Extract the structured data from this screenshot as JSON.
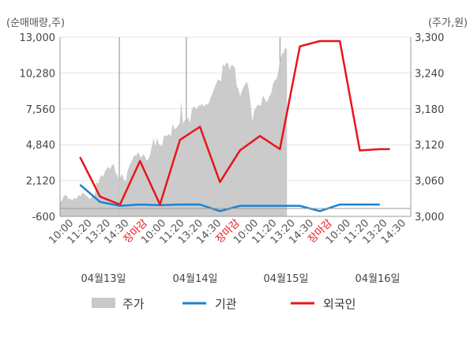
{
  "chart_data": {
    "type": "line",
    "left_axis_label": "(순매매량,주)",
    "right_axis_label": "(주가,원)",
    "left_ticks": [
      "13,000",
      "10,280",
      "7,560",
      "4,840",
      "2,120",
      "-600"
    ],
    "left_range": [
      -600,
      13000
    ],
    "right_ticks": [
      "3,300",
      "3,240",
      "3,180",
      "3,120",
      "3,060",
      "3,000"
    ],
    "right_range": [
      3000,
      3300
    ],
    "x_labels": [
      "10:00",
      "11:20",
      "13:20",
      "14:30",
      "장마감",
      "10:00",
      "11:20",
      "13:20",
      "14:30",
      "장마감",
      "10:00",
      "11:20",
      "13:20",
      "14:30",
      "장마감",
      "10:00",
      "11:20",
      "13:20",
      "14:30"
    ],
    "closing_label": "장마감",
    "date_labels": [
      "04월13일",
      "04월14일",
      "04월15일",
      "04월16일"
    ],
    "legend": [
      {
        "name": "주가",
        "color": "#c8c8c8",
        "kind": "area"
      },
      {
        "name": "기관",
        "color": "#1a82d2",
        "kind": "line"
      },
      {
        "name": "외국인",
        "color": "#e8151a",
        "kind": "line"
      }
    ],
    "price_series": {
      "name": "주가",
      "color": "#c8c8c8",
      "values": [
        3027,
        3025,
        3033,
        3036,
        3034,
        3028,
        3030,
        3026,
        3031,
        3029,
        3032,
        3036,
        3034,
        3040,
        3038,
        3035,
        3033,
        3029,
        3031,
        3036,
        3034,
        3058,
        3055,
        3065,
        3069,
        3067,
        3076,
        3080,
        3083,
        3079,
        3086,
        3087,
        3074,
        3069,
        3062,
        3067,
        3071,
        3060,
        3059,
        3076,
        3085,
        3090,
        3097,
        3103,
        3101,
        3108,
        3102,
        3098,
        3104,
        3101,
        3093,
        3096,
        3104,
        3117,
        3131,
        3117,
        3132,
        3121,
        3119,
        3118,
        3136,
        3134,
        3136,
        3138,
        3134,
        3156,
        3146,
        3147,
        3152,
        3155,
        3193,
        3155,
        3161,
        3160,
        3166,
        3156,
        3178,
        3184,
        3182,
        3180,
        3186,
        3185,
        3189,
        3183,
        3188,
        3187,
        3190,
        3199,
        3206,
        3215,
        3221,
        3229,
        3228,
        3226,
        3255,
        3251,
        3257,
        3256,
        3245,
        3254,
        3252,
        3248,
        3218,
        3213,
        3201,
        3210,
        3217,
        3222,
        3225,
        3212,
        3188,
        3159,
        3175,
        3182,
        3186,
        3187,
        3185,
        3202,
        3198,
        3191,
        3195,
        3202,
        3207,
        3222,
        3228,
        3230,
        3243,
        3262,
        3272,
        3274,
        3283,
        3279
      ]
    },
    "institution_series": {
      "name": "기관",
      "color": "#1a82d2",
      "x": [
        0,
        1,
        2,
        3,
        4,
        5,
        6,
        7,
        8,
        9,
        10,
        11,
        12,
        13,
        14,
        15
      ],
      "values": [
        1800,
        500,
        200,
        300,
        250,
        300,
        300,
        -200,
        200,
        200,
        200,
        200,
        -200,
        300,
        300,
        300
      ]
    },
    "foreign_series": {
      "name": "외국인",
      "color": "#e8151a",
      "x": [
        0,
        1,
        2,
        3,
        4,
        5,
        6,
        7,
        8,
        9,
        10,
        11,
        12,
        13,
        14,
        15,
        15.5
      ],
      "values": [
        3900,
        900,
        300,
        3600,
        300,
        5200,
        6200,
        2000,
        4400,
        5500,
        4500,
        12300,
        12700,
        12700,
        4400,
        4500,
        4500
      ]
    },
    "grid": true,
    "legend_position": "bottom"
  }
}
